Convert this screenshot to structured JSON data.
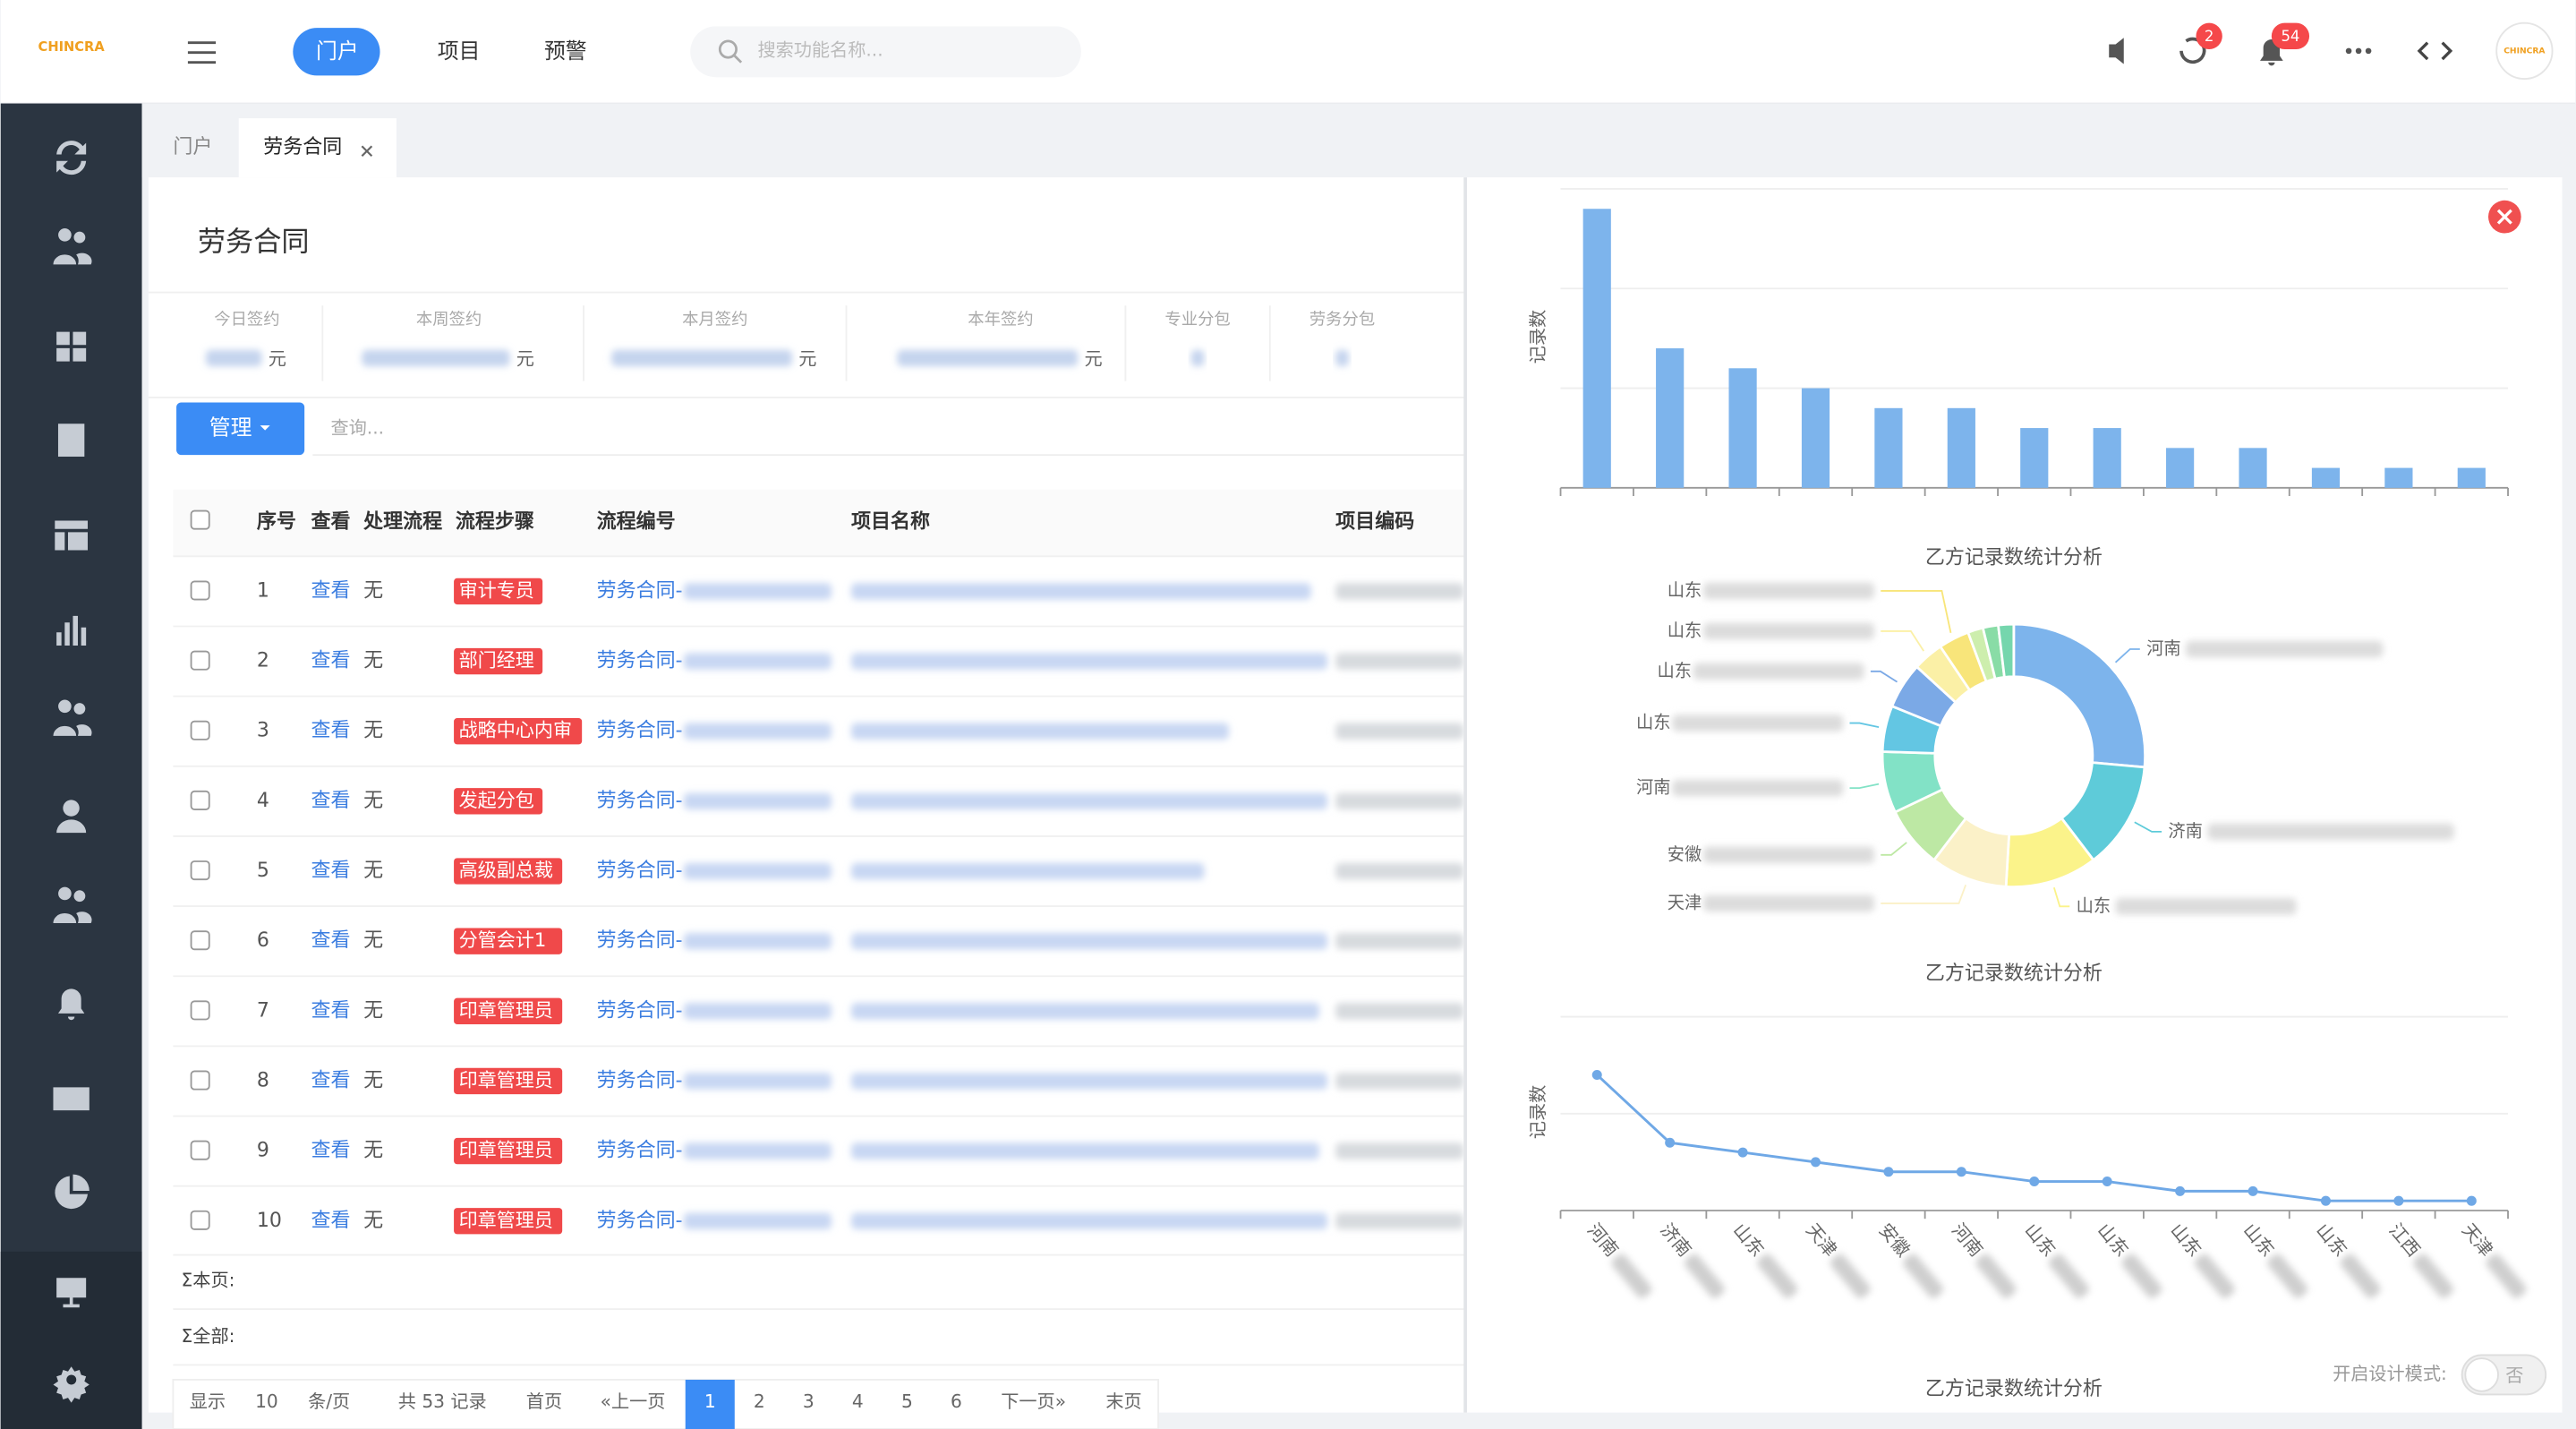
{
  "header": {
    "logo": "CHINCRA",
    "nav": [
      "门户",
      "项目",
      "预警"
    ],
    "search_placeholder": "搜索功能名称...",
    "badges": [
      2,
      54
    ]
  },
  "tabs": [
    "门户",
    "劳务合同"
  ],
  "page": {
    "title": "劳务合同",
    "stats": [
      "今日签约",
      "本周签约",
      "本月签约",
      "本年签约",
      "专业分包",
      "劳务分包"
    ],
    "stat_unit": "元",
    "manage_button": "管理",
    "query_placeholder": "查询..."
  },
  "table": {
    "columns": [
      "序号",
      "查看",
      "处理流程",
      "流程步骤",
      "流程编号",
      "项目名称",
      "项目编码"
    ],
    "rows": [
      [
        1,
        "查看",
        "无",
        "审计专员",
        "劳务合同-"
      ],
      [
        2,
        "查看",
        "无",
        "部门经理",
        "劳务合同-"
      ],
      [
        3,
        "查看",
        "无",
        "战略中心内审",
        "劳务合同-"
      ],
      [
        4,
        "查看",
        "无",
        "发起分包",
        "劳务合同-"
      ],
      [
        5,
        "查看",
        "无",
        "高级副总裁",
        "劳务合同-"
      ],
      [
        6,
        "查看",
        "无",
        "分管会计1",
        "劳务合同-"
      ],
      [
        7,
        "查看",
        "无",
        "印章管理员",
        "劳务合同-"
      ],
      [
        8,
        "查看",
        "无",
        "印章管理员",
        "劳务合同-"
      ],
      [
        9,
        "查看",
        "无",
        "印章管理员",
        "劳务合同-"
      ],
      [
        10,
        "查看",
        "无",
        "印章管理员",
        "劳务合同-"
      ]
    ]
  },
  "summary": [
    "Σ本页:",
    "Σ全部:"
  ],
  "pagination": {
    "show": "显示",
    "page_size": 10,
    "per_page": "条/页",
    "total": "共 53 记录",
    "first": "首页",
    "prev": "«上一页",
    "pages": [
      1,
      2,
      3,
      4,
      5,
      6
    ],
    "next": "下一页»",
    "last": "末页"
  },
  "design_mode": {
    "label": "开启设计模式:",
    "state": "否"
  },
  "chart_data": [
    {
      "type": "bar",
      "y_label": "记录数",
      "color": "#7db4ec",
      "values": [
        14,
        7,
        6,
        5,
        4,
        4,
        3,
        3,
        2,
        2,
        1,
        1,
        1
      ],
      "ylim": [
        0,
        15
      ],
      "yticks": [
        0,
        5,
        10,
        15
      ],
      "grid": true
    },
    {
      "type": "pie",
      "title": "乙方记录数统计分析",
      "categories": [
        "河南",
        "济南",
        "山东",
        "天津",
        "安徽",
        "河南",
        "山东",
        "山东",
        "山东",
        "山东",
        null,
        null,
        null
      ],
      "values": [
        14,
        7,
        6,
        5,
        4,
        4,
        3,
        3,
        2,
        2,
        1,
        1,
        1
      ],
      "colors": [
        "#7db4ec",
        "#5ecbd9",
        "#fbf38a",
        "#fbf1c8",
        "#bde8a4",
        "#82e2c6",
        "#63c6e3",
        "#7ba9e6",
        "#fbf0a6",
        "#f8e57a",
        "#cdeead",
        "#89dca6",
        "#75d6ad"
      ]
    },
    {
      "type": "line",
      "title": "乙方记录数统计分析",
      "y_label": "记录数",
      "color": "#6fa8e6",
      "categories": [
        "河南",
        "济南",
        "山东",
        "天津",
        "安徽",
        "河南",
        "山东",
        "山东",
        "山东",
        "山东",
        "山东",
        "江西",
        "天津"
      ],
      "values": [
        14,
        7,
        6,
        5,
        4,
        4,
        3,
        3,
        2,
        2,
        1,
        1,
        1
      ],
      "ylim": [
        0,
        20
      ],
      "yticks": [
        0,
        10,
        20
      ],
      "grid": true
    },
    {
      "type": "bar",
      "title": "乙方记录数统计分析"
    }
  ]
}
